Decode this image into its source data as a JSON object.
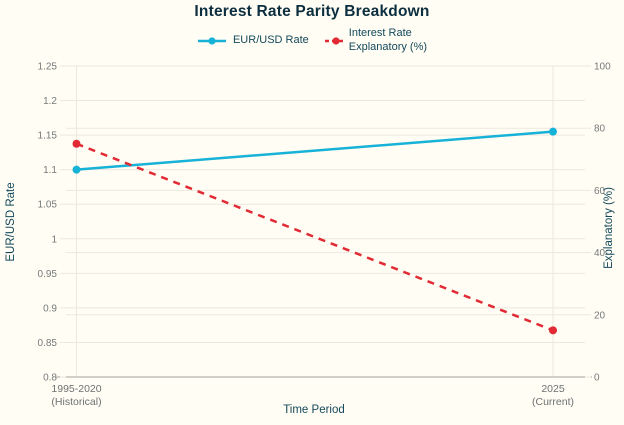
{
  "title": "Interest Rate Parity Breakdown",
  "colors": {
    "background": "#fffdf4",
    "title_text": "#0c2e3e",
    "axis_title_text": "#14495c",
    "tick_label_text": "#76797a",
    "category_label_text": "#6e7173",
    "gridline": "#ebe8e0",
    "axis_line": "#a3a29c",
    "series_eur_usd": "#17b2d7",
    "series_interest_rate": "#e12a33"
  },
  "chart_data": {
    "type": "line",
    "title": "Interest Rate Parity Breakdown",
    "categories": [
      "1995-2020\n(Historical)",
      "2025\n(Current)"
    ],
    "xlabel": "Time Period",
    "grid": true,
    "legend_position": "top",
    "y_left": {
      "label": "EUR/USD Rate",
      "min": 0.8,
      "max": 1.25,
      "tick_step": 0.05,
      "tick_values": [
        0.8,
        0.85,
        0.9,
        0.95,
        1,
        1.05,
        1.1,
        1.15,
        1.2,
        1.25
      ],
      "tick_labels": [
        "0.8",
        "0.85",
        "0.9",
        "0.95",
        "1",
        "1.05",
        "1.1",
        "1.15",
        "1.2",
        "1.25"
      ]
    },
    "y_right": {
      "label": "Explanatory (%)",
      "min": 0,
      "max": 100,
      "tick_step": 20,
      "tick_values": [
        0,
        20,
        40,
        60,
        80,
        100
      ],
      "tick_labels": [
        "0",
        "20",
        "40",
        "60",
        "80",
        "100"
      ]
    },
    "series": [
      {
        "name": "EUR/USD Rate",
        "axis": "left",
        "style": "solid",
        "color": "#17b2d7",
        "values": [
          1.1,
          1.155
        ]
      },
      {
        "name": "Interest Rate\nExplanatory (%)",
        "axis": "right",
        "style": "dashed",
        "color": "#e12a33",
        "values": [
          75,
          15
        ]
      }
    ]
  }
}
